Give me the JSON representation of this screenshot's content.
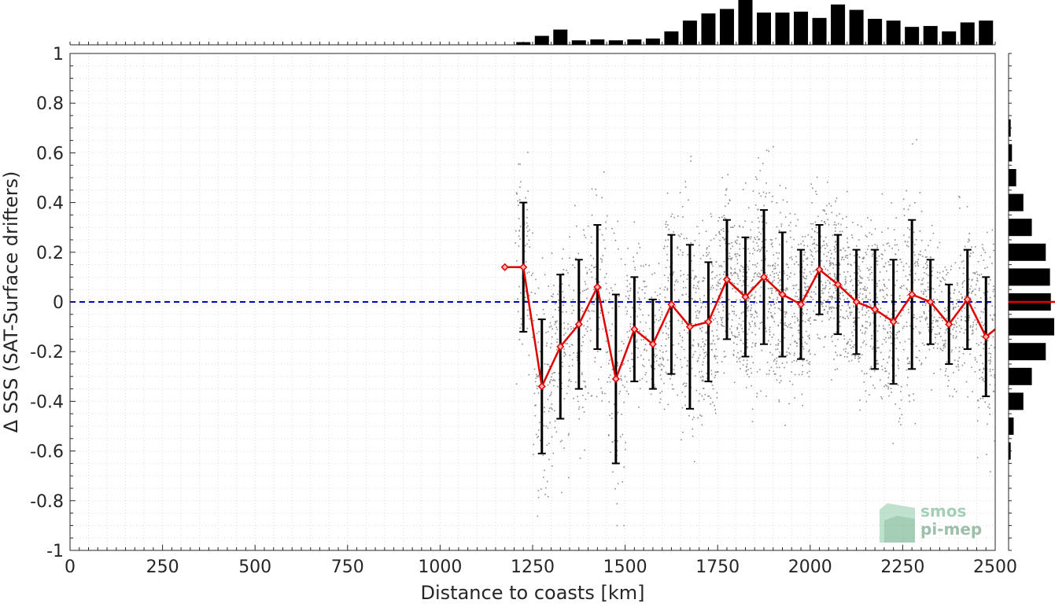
{
  "chart_data": {
    "type": "line",
    "xlabel": "Distance to coasts [km]",
    "ylabel": "Δ SSS (SAT-Surface drifters)",
    "xlim": [
      0,
      2500
    ],
    "ylim": [
      -1,
      1
    ],
    "x_ticks": [
      0,
      250,
      500,
      750,
      1000,
      1250,
      1500,
      1750,
      2000,
      2250,
      2500
    ],
    "y_ticks": [
      1,
      0.8,
      0.6,
      0.4,
      0.2,
      0,
      -0.2,
      -0.4,
      -0.6,
      -0.8,
      -1
    ],
    "x_tick_labels": [
      "0",
      "250",
      "500",
      "750",
      "1000",
      "1250",
      "1500",
      "1750",
      "2000",
      "2250",
      "2500"
    ],
    "y_tick_labels": [
      "1",
      "0.8",
      "0.6",
      "0.4",
      "0.2",
      "0",
      "-0.2",
      "-0.4",
      "-0.6",
      "-0.8",
      "-1"
    ],
    "grid": true,
    "reference_line": {
      "y": 0,
      "color": "#0000cc",
      "style": "dashed"
    },
    "colors": {
      "mean_line": "#e00000",
      "error_bars": "#000000",
      "scatter": "#808080",
      "histogram": "#000000"
    },
    "mean_series": {
      "x": [
        1175,
        1225,
        1275,
        1325,
        1375,
        1425,
        1475,
        1525,
        1575,
        1625,
        1675,
        1725,
        1775,
        1825,
        1875,
        1925,
        1975,
        2025,
        2075,
        2125,
        2175,
        2225,
        2275,
        2325,
        2375,
        2425,
        2475,
        2500
      ],
      "y": [
        0.14,
        0.14,
        -0.34,
        -0.18,
        -0.09,
        0.06,
        -0.31,
        -0.11,
        -0.17,
        -0.01,
        -0.1,
        -0.08,
        0.09,
        0.02,
        0.1,
        0.03,
        -0.01,
        0.13,
        0.07,
        0.0,
        -0.03,
        -0.08,
        0.03,
        0.0,
        -0.09,
        0.01,
        -0.14,
        -0.11
      ],
      "std": [
        0,
        0.26,
        0.27,
        0.29,
        0.26,
        0.25,
        0.34,
        0.21,
        0.18,
        0.28,
        0.33,
        0.24,
        0.24,
        0.24,
        0.27,
        0.25,
        0.22,
        0.18,
        0.2,
        0.21,
        0.24,
        0.25,
        0.3,
        0.17,
        0.16,
        0.2,
        0.24,
        0
      ]
    },
    "top_histogram": {
      "x": [
        1225,
        1275,
        1325,
        1375,
        1425,
        1475,
        1525,
        1575,
        1625,
        1675,
        1725,
        1775,
        1825,
        1875,
        1925,
        1975,
        2025,
        2075,
        2125,
        2175,
        2225,
        2275,
        2325,
        2375,
        2425,
        2475
      ],
      "counts": [
        0.06,
        0.2,
        0.34,
        0.1,
        0.12,
        0.1,
        0.12,
        0.14,
        0.3,
        0.54,
        0.7,
        0.8,
        1.0,
        0.72,
        0.72,
        0.74,
        0.6,
        0.9,
        0.78,
        0.58,
        0.54,
        0.4,
        0.42,
        0.3,
        0.5,
        0.54
      ]
    },
    "right_histogram": {
      "y": [
        0.7,
        0.6,
        0.5,
        0.4,
        0.3,
        0.2,
        0.1,
        0.0,
        -0.1,
        -0.2,
        -0.3,
        -0.4,
        -0.5,
        -0.6
      ],
      "counts": [
        0.05,
        0.08,
        0.18,
        0.35,
        0.55,
        0.88,
        0.98,
        1.0,
        1.08,
        0.88,
        0.55,
        0.35,
        0.12,
        0.05
      ]
    },
    "scatter_cloud": {
      "x_range": [
        1225,
        2500
      ],
      "typical_y_range": [
        -0.6,
        0.6
      ]
    }
  },
  "watermark": {
    "line1": "smos",
    "line2": "pi-mep"
  }
}
